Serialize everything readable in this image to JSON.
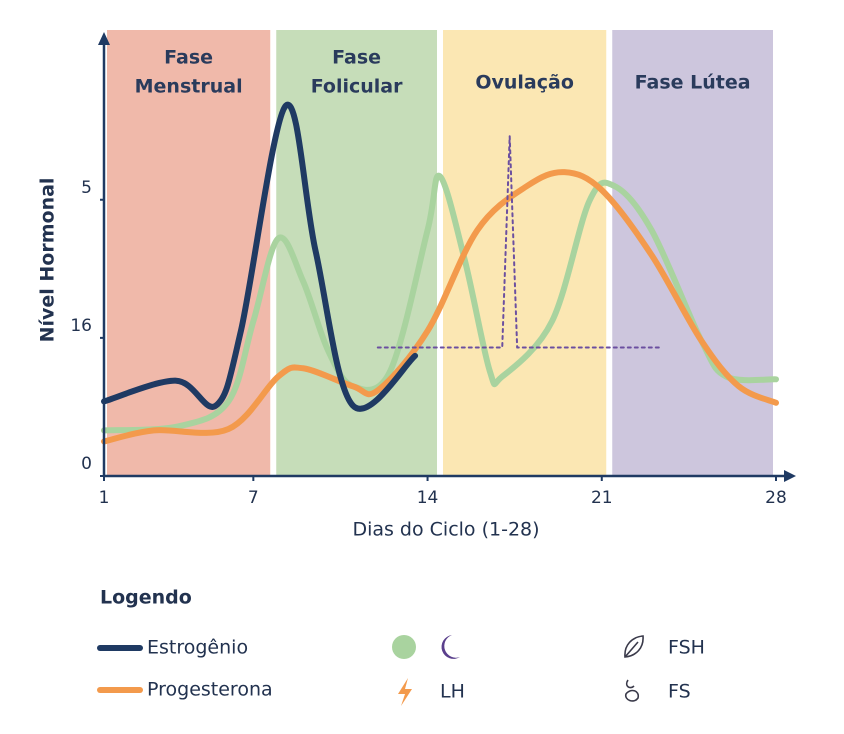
{
  "chart_data": {
    "type": "line",
    "xlabel": "Dias do Ciclo (1-28)",
    "ylabel": "Nível Hormonal",
    "xlim": [
      1,
      28
    ],
    "ylim": [
      0,
      3.2
    ],
    "xticks": [
      1,
      7,
      14,
      21,
      28
    ],
    "yticks": [
      0,
      {
        "value": 1,
        "label": "16"
      },
      {
        "value": 2,
        "label": "5"
      }
    ],
    "phases": [
      {
        "label": [
          "Fase",
          "Menstrual"
        ],
        "start": 1,
        "end": 7.8,
        "color": "#f0b9aa"
      },
      {
        "label": [
          "Fase",
          "Folicular"
        ],
        "start": 7.8,
        "end": 14.5,
        "color": "#c6ddb9"
      },
      {
        "label": [
          "Ovulação"
        ],
        "start": 14.5,
        "end": 21.3,
        "color": "#fbe7b3"
      },
      {
        "label": [
          "Fase Lútea"
        ],
        "start": 21.3,
        "end": 28,
        "color": "#cdc6dd"
      }
    ],
    "series": [
      {
        "name": "FSH",
        "color": "#a9d39f",
        "x": [
          1,
          4,
          6,
          7,
          8,
          9,
          10,
          11,
          12.5,
          14,
          14.5,
          15.5,
          16.5,
          17,
          19,
          20.5,
          21.5,
          23,
          25,
          26,
          28
        ],
        "values": [
          0.33,
          0.36,
          0.54,
          1.12,
          1.72,
          1.41,
          0.91,
          0.65,
          0.76,
          1.78,
          2.17,
          1.56,
          0.76,
          0.72,
          1.12,
          1.99,
          2.1,
          1.78,
          0.98,
          0.72,
          0.7
        ]
      },
      {
        "name": "Progesterona",
        "color": "#f39a4c",
        "x": [
          1,
          3,
          6,
          8,
          9,
          11,
          12,
          14,
          16,
          18,
          19.5,
          21,
          23,
          25,
          26.5,
          28
        ],
        "values": [
          0.25,
          0.33,
          0.34,
          0.72,
          0.78,
          0.65,
          0.62,
          1.05,
          1.78,
          2.1,
          2.2,
          2.07,
          1.6,
          0.98,
          0.65,
          0.53
        ]
      },
      {
        "name": "Estrogênio",
        "color": "#1f3a63",
        "x": [
          1,
          3.9,
          5.5,
          6.5,
          8.3,
          9.5,
          11,
          13.5
        ],
        "values": [
          0.54,
          0.69,
          0.51,
          1.05,
          2.68,
          1.63,
          0.51,
          0.87
        ]
      },
      {
        "name": "LH",
        "color": "#6b4fa0",
        "dashed": true,
        "x": [
          12,
          17,
          17.3,
          17.6,
          23.3
        ],
        "values": [
          0.93,
          0.93,
          2.46,
          0.93,
          0.93
        ]
      }
    ],
    "legend_title": "Logendo",
    "legend_extra": "FS"
  }
}
